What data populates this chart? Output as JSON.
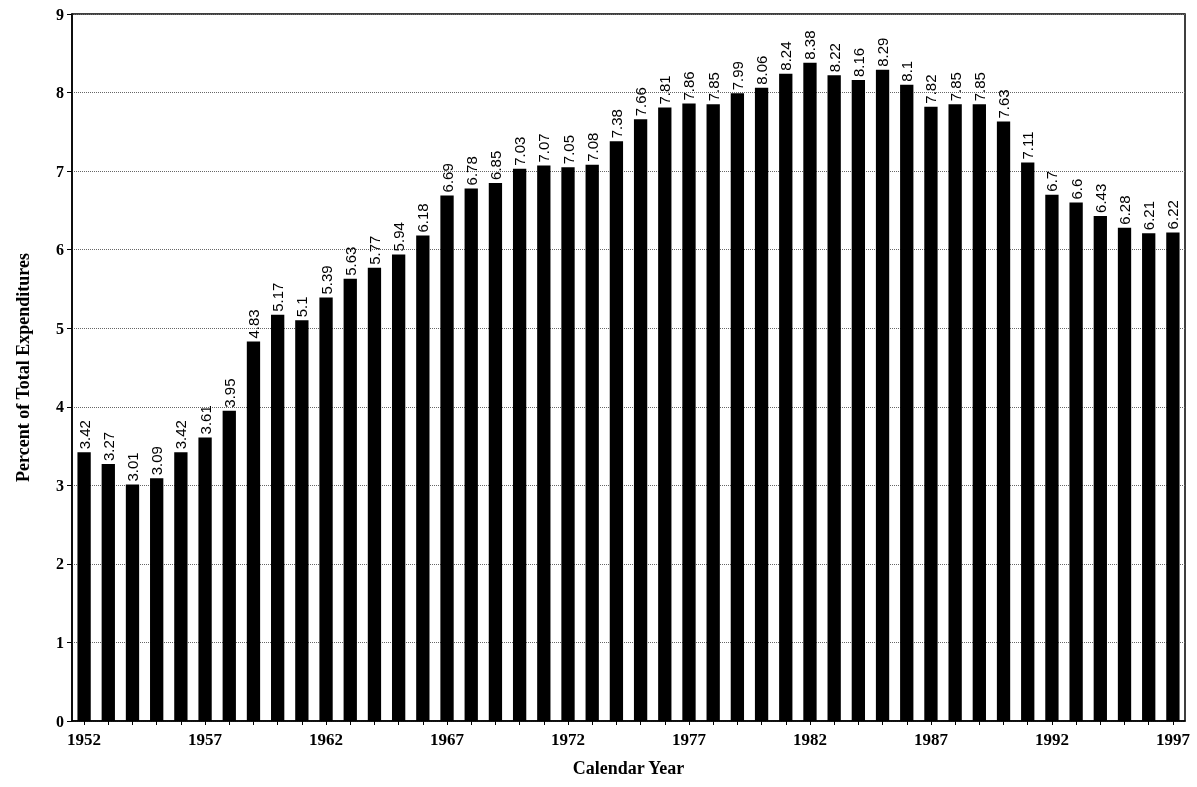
{
  "chart_data": {
    "type": "bar",
    "xlabel": "Calendar Year",
    "ylabel": "Percent of Total Expenditures",
    "categories": [
      "1952",
      null,
      null,
      null,
      null,
      "1957",
      null,
      null,
      null,
      null,
      "1962",
      null,
      null,
      null,
      null,
      "1967",
      null,
      null,
      null,
      null,
      "1972",
      null,
      null,
      null,
      null,
      "1977",
      null,
      null,
      null,
      null,
      "1982",
      null,
      null,
      null,
      null,
      "1987",
      null,
      null,
      null,
      null,
      "1992",
      null,
      null,
      null,
      null,
      "1997"
    ],
    "values": [
      3.42,
      3.27,
      3.01,
      3.09,
      3.42,
      3.61,
      3.95,
      4.83,
      5.17,
      5.1,
      5.39,
      5.63,
      5.77,
      5.94,
      6.18,
      6.69,
      6.78,
      6.85,
      7.03,
      7.07,
      7.05,
      7.08,
      7.38,
      7.66,
      7.81,
      7.86,
      7.85,
      7.99,
      8.06,
      8.24,
      8.38,
      8.22,
      8.16,
      8.29,
      8.1,
      7.82,
      7.85,
      7.85,
      7.63,
      7.11,
      6.7,
      6.6,
      6.43,
      6.28,
      6.21,
      6.22
    ],
    "color": "#000000",
    "ylim": [
      0,
      9
    ],
    "yticks": [
      0,
      1,
      2,
      3,
      4,
      5,
      6,
      7,
      8,
      9
    ],
    "grid": "y",
    "data_labels": true
  }
}
